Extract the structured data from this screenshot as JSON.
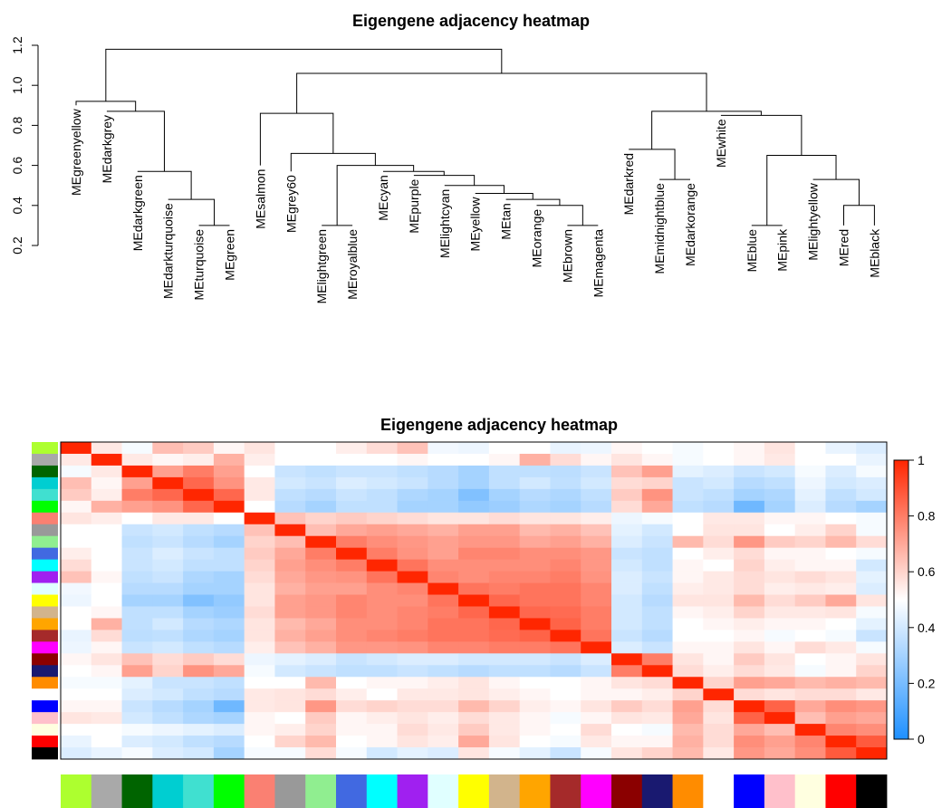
{
  "chart_data": [
    {
      "type": "dendrogram",
      "title": "Eigengene adjacency heatmap",
      "ylim": [
        0.2,
        1.2
      ],
      "yticks": [
        "0.2",
        "0.4",
        "0.6",
        "0.8",
        "1.0",
        "1.2"
      ],
      "ytick_values": [
        0.2,
        0.4,
        0.6,
        0.8,
        1.0,
        1.2
      ],
      "leaves": [
        "MEgreenyellow",
        "MEdarkgrey",
        "MEdarkgreen",
        "MEdarkturquoise",
        "MEturquoise",
        "MEgreen",
        "MEsalmon",
        "MEgrey60",
        "MElightgreen",
        "MEroyalblue",
        "MEcyan",
        "MEpurple",
        "MElightcyan",
        "MEyellow",
        "MEtan",
        "MEorange",
        "MEbrown",
        "MEmagenta",
        "MEdarkred",
        "MEmidnightblue",
        "MEdarkorange",
        "MEwhite",
        "MEblue",
        "MEpink",
        "MElightyellow",
        "MEred",
        "MEblack"
      ],
      "leaf_tops": [
        0.9,
        0.87,
        0.57,
        0.43,
        0.3,
        0.3,
        0.6,
        0.57,
        0.3,
        0.3,
        0.57,
        0.55,
        0.5,
        0.46,
        0.43,
        0.4,
        0.3,
        0.3,
        0.68,
        0.53,
        0.53,
        0.85,
        0.3,
        0.3,
        0.53,
        0.3,
        0.3
      ],
      "merges": [
        {
          "left": "L4",
          "right": "L5",
          "height": 0.3
        },
        {
          "left": "L3",
          "right": "m0",
          "height": 0.43
        },
        {
          "left": "L2",
          "right": "m1",
          "height": 0.57
        },
        {
          "left": "L1",
          "right": "m2",
          "height": 0.87
        },
        {
          "left": "L0",
          "right": "m3",
          "height": 0.92
        },
        {
          "left": "L8",
          "right": "L9",
          "height": 0.3
        },
        {
          "left": "L16",
          "right": "L17",
          "height": 0.3
        },
        {
          "left": "L15",
          "right": "m6",
          "height": 0.4
        },
        {
          "left": "L14",
          "right": "m7",
          "height": 0.43
        },
        {
          "left": "L13",
          "right": "m8",
          "height": 0.46
        },
        {
          "left": "L12",
          "right": "m9",
          "height": 0.5
        },
        {
          "left": "L11",
          "right": "m10",
          "height": 0.55
        },
        {
          "left": "L10",
          "right": "m11",
          "height": 0.57
        },
        {
          "left": "m5",
          "right": "m12",
          "height": 0.6
        },
        {
          "left": "L7",
          "right": "m13",
          "height": 0.66
        },
        {
          "left": "L6",
          "right": "m14",
          "height": 0.86
        },
        {
          "left": "L19",
          "right": "L20",
          "height": 0.53
        },
        {
          "left": "L18",
          "right": "m16",
          "height": 0.68
        },
        {
          "left": "L22",
          "right": "L23",
          "height": 0.3
        },
        {
          "left": "L25",
          "right": "L26",
          "height": 0.4
        },
        {
          "left": "L24",
          "right": "m19",
          "height": 0.53
        },
        {
          "left": "m18",
          "right": "m20",
          "height": 0.65
        },
        {
          "left": "L21",
          "right": "m21",
          "height": 0.85
        },
        {
          "left": "m17",
          "right": "m22",
          "height": 0.87
        },
        {
          "left": "m15",
          "right": "m23",
          "height": 1.06
        },
        {
          "left": "m4",
          "right": "m24",
          "height": 1.18
        }
      ]
    },
    {
      "type": "heatmap",
      "title": "Eigengene adjacency heatmap",
      "zlim": [
        0,
        1
      ],
      "colorbar_ticks": [
        "0",
        "0.2",
        "0.4",
        "0.6",
        "0.8",
        "1"
      ],
      "colorbar_tick_values": [
        0,
        0.2,
        0.4,
        0.6,
        0.8,
        1
      ],
      "colorscale": [
        "#1e90ff",
        "#ffffff",
        "#ff2600"
      ],
      "row_colors": [
        "#adff2f",
        "#a9a9a9",
        "#006400",
        "#00ced1",
        "#40e0d0",
        "#00ff00",
        "#fa8072",
        "#999999",
        "#90ee90",
        "#4169e1",
        "#00ffff",
        "#a020f0",
        "#e0ffff",
        "#ffff00",
        "#d2b48c",
        "#ffa500",
        "#a52a2a",
        "#ff00ff",
        "#8b0000",
        "#191970",
        "#ff8c00",
        "#ffffff",
        "#0000ff",
        "#ffc0cb",
        "#ffffe0",
        "#ff0000",
        "#000000"
      ],
      "col_colors": [
        "#adff2f",
        "#a9a9a9",
        "#006400",
        "#00ced1",
        "#40e0d0",
        "#00ff00",
        "#fa8072",
        "#999999",
        "#90ee90",
        "#4169e1",
        "#00ffff",
        "#a020f0",
        "#e0ffff",
        "#ffff00",
        "#d2b48c",
        "#ffa500",
        "#a52a2a",
        "#ff00ff",
        "#8b0000",
        "#191970",
        "#ff8c00",
        "#ffffff",
        "#0000ff",
        "#ffc0cb",
        "#ffffe0",
        "#ff0000",
        "#000000"
      ],
      "values": [
        [
          1,
          0.55,
          0.48,
          0.65,
          0.62,
          0.52,
          0.56,
          0.5,
          0.5,
          0.54,
          0.58,
          0.64,
          0.47,
          0.46,
          0.5,
          0.5,
          0.45,
          0.46,
          0.52,
          0.5,
          0.48,
          0.5,
          0.52,
          0.56,
          0.5,
          0.45,
          0.42
        ],
        [
          0.55,
          1,
          0.55,
          0.52,
          0.54,
          0.68,
          0.54,
          0.5,
          0.5,
          0.5,
          0.5,
          0.52,
          0.5,
          0.5,
          0.52,
          0.68,
          0.58,
          0.52,
          0.56,
          0.52,
          0.48,
          0.5,
          0.52,
          0.55,
          0.5,
          0.5,
          0.45
        ],
        [
          0.48,
          0.55,
          1,
          0.72,
          0.8,
          0.72,
          0.5,
          0.38,
          0.36,
          0.38,
          0.38,
          0.36,
          0.34,
          0.3,
          0.36,
          0.36,
          0.35,
          0.38,
          0.64,
          0.72,
          0.44,
          0.42,
          0.38,
          0.4,
          0.48,
          0.42,
          0.48
        ],
        [
          0.65,
          0.52,
          0.72,
          1,
          0.85,
          0.75,
          0.55,
          0.4,
          0.38,
          0.42,
          0.4,
          0.38,
          0.34,
          0.3,
          0.36,
          0.4,
          0.36,
          0.4,
          0.58,
          0.6,
          0.38,
          0.4,
          0.34,
          0.36,
          0.46,
          0.4,
          0.42
        ],
        [
          0.62,
          0.54,
          0.8,
          0.85,
          1,
          0.85,
          0.55,
          0.36,
          0.34,
          0.38,
          0.36,
          0.32,
          0.3,
          0.22,
          0.3,
          0.34,
          0.32,
          0.36,
          0.62,
          0.75,
          0.38,
          0.36,
          0.3,
          0.32,
          0.44,
          0.36,
          0.4
        ],
        [
          0.52,
          0.68,
          0.72,
          0.75,
          0.85,
          1,
          0.5,
          0.34,
          0.3,
          0.36,
          0.36,
          0.3,
          0.3,
          0.26,
          0.28,
          0.32,
          0.3,
          0.34,
          0.58,
          0.7,
          0.36,
          0.34,
          0.18,
          0.3,
          0.42,
          0.34,
          0.3
        ],
        [
          0.56,
          0.54,
          0.5,
          0.55,
          0.55,
          0.5,
          1,
          0.64,
          0.6,
          0.62,
          0.6,
          0.58,
          0.56,
          0.56,
          0.58,
          0.56,
          0.56,
          0.54,
          0.46,
          0.48,
          0.5,
          0.55,
          0.55,
          0.52,
          0.52,
          0.5,
          0.48
        ],
        [
          0.5,
          0.5,
          0.38,
          0.4,
          0.36,
          0.34,
          0.64,
          1,
          0.65,
          0.7,
          0.72,
          0.7,
          0.68,
          0.72,
          0.72,
          0.66,
          0.68,
          0.64,
          0.44,
          0.4,
          0.5,
          0.56,
          0.56,
          0.5,
          0.54,
          0.6,
          0.48
        ],
        [
          0.5,
          0.5,
          0.36,
          0.38,
          0.34,
          0.3,
          0.6,
          0.65,
          1,
          0.8,
          0.76,
          0.74,
          0.72,
          0.74,
          0.74,
          0.7,
          0.72,
          0.68,
          0.42,
          0.38,
          0.66,
          0.58,
          0.74,
          0.62,
          0.6,
          0.66,
          0.58
        ],
        [
          0.54,
          0.5,
          0.38,
          0.42,
          0.38,
          0.36,
          0.62,
          0.7,
          0.8,
          1,
          0.8,
          0.75,
          0.72,
          0.78,
          0.78,
          0.76,
          0.76,
          0.74,
          0.38,
          0.36,
          0.5,
          0.54,
          0.58,
          0.52,
          0.52,
          0.5,
          0.48
        ],
        [
          0.58,
          0.5,
          0.38,
          0.4,
          0.36,
          0.36,
          0.6,
          0.72,
          0.76,
          0.8,
          1,
          0.82,
          0.76,
          0.76,
          0.76,
          0.76,
          0.78,
          0.74,
          0.4,
          0.36,
          0.52,
          0.5,
          0.6,
          0.54,
          0.52,
          0.52,
          0.4
        ],
        [
          0.64,
          0.52,
          0.36,
          0.38,
          0.32,
          0.3,
          0.58,
          0.7,
          0.74,
          0.75,
          0.82,
          1,
          0.78,
          0.76,
          0.78,
          0.78,
          0.8,
          0.75,
          0.42,
          0.38,
          0.52,
          0.55,
          0.58,
          0.56,
          0.58,
          0.56,
          0.44
        ],
        [
          0.47,
          0.5,
          0.34,
          0.34,
          0.3,
          0.3,
          0.56,
          0.68,
          0.72,
          0.72,
          0.76,
          0.78,
          1,
          0.82,
          0.8,
          0.82,
          0.82,
          0.78,
          0.42,
          0.36,
          0.54,
          0.55,
          0.58,
          0.54,
          0.55,
          0.54,
          0.42
        ],
        [
          0.46,
          0.5,
          0.3,
          0.3,
          0.22,
          0.26,
          0.56,
          0.72,
          0.74,
          0.78,
          0.76,
          0.76,
          0.82,
          1,
          0.85,
          0.82,
          0.82,
          0.78,
          0.4,
          0.34,
          0.56,
          0.56,
          0.66,
          0.58,
          0.62,
          0.7,
          0.56
        ],
        [
          0.5,
          0.52,
          0.36,
          0.36,
          0.3,
          0.28,
          0.58,
          0.72,
          0.74,
          0.78,
          0.76,
          0.78,
          0.8,
          0.85,
          1,
          0.85,
          0.84,
          0.8,
          0.4,
          0.36,
          0.52,
          0.54,
          0.6,
          0.55,
          0.55,
          0.56,
          0.48
        ],
        [
          0.5,
          0.68,
          0.36,
          0.4,
          0.34,
          0.32,
          0.56,
          0.66,
          0.7,
          0.76,
          0.76,
          0.78,
          0.82,
          0.82,
          0.85,
          1,
          0.86,
          0.8,
          0.4,
          0.36,
          0.5,
          0.52,
          0.54,
          0.52,
          0.52,
          0.5,
          0.44
        ],
        [
          0.45,
          0.58,
          0.35,
          0.36,
          0.32,
          0.3,
          0.56,
          0.68,
          0.72,
          0.76,
          0.78,
          0.8,
          0.82,
          0.82,
          0.84,
          0.86,
          1,
          0.82,
          0.38,
          0.34,
          0.5,
          0.5,
          0.52,
          0.48,
          0.5,
          0.48,
          0.38
        ],
        [
          0.46,
          0.52,
          0.38,
          0.4,
          0.36,
          0.34,
          0.54,
          0.64,
          0.68,
          0.74,
          0.74,
          0.75,
          0.78,
          0.78,
          0.8,
          0.8,
          0.82,
          1,
          0.42,
          0.38,
          0.52,
          0.52,
          0.56,
          0.52,
          0.58,
          0.55,
          0.48
        ],
        [
          0.52,
          0.56,
          0.64,
          0.58,
          0.62,
          0.58,
          0.46,
          0.44,
          0.42,
          0.38,
          0.4,
          0.42,
          0.42,
          0.4,
          0.4,
          0.4,
          0.38,
          0.42,
          1,
          0.8,
          0.56,
          0.52,
          0.62,
          0.56,
          0.5,
          0.52,
          0.56
        ],
        [
          0.5,
          0.52,
          0.72,
          0.6,
          0.75,
          0.7,
          0.48,
          0.4,
          0.38,
          0.36,
          0.36,
          0.38,
          0.36,
          0.34,
          0.36,
          0.36,
          0.34,
          0.38,
          0.8,
          1,
          0.58,
          0.54,
          0.58,
          0.55,
          0.48,
          0.52,
          0.6
        ],
        [
          0.48,
          0.48,
          0.44,
          0.38,
          0.38,
          0.36,
          0.5,
          0.5,
          0.66,
          0.5,
          0.52,
          0.52,
          0.54,
          0.56,
          0.52,
          0.5,
          0.5,
          0.52,
          0.56,
          0.58,
          1,
          0.6,
          0.72,
          0.7,
          0.66,
          0.68,
          0.66
        ],
        [
          0.5,
          0.5,
          0.42,
          0.4,
          0.36,
          0.34,
          0.55,
          0.56,
          0.58,
          0.54,
          0.5,
          0.55,
          0.55,
          0.56,
          0.54,
          0.52,
          0.5,
          0.52,
          0.52,
          0.54,
          0.6,
          1,
          0.58,
          0.56,
          0.58,
          0.58,
          0.55
        ],
        [
          0.52,
          0.52,
          0.38,
          0.34,
          0.3,
          0.18,
          0.55,
          0.56,
          0.74,
          0.58,
          0.6,
          0.58,
          0.58,
          0.66,
          0.6,
          0.54,
          0.52,
          0.56,
          0.62,
          0.58,
          0.72,
          0.58,
          1,
          0.86,
          0.7,
          0.76,
          0.74
        ],
        [
          0.56,
          0.55,
          0.4,
          0.36,
          0.32,
          0.3,
          0.52,
          0.5,
          0.62,
          0.52,
          0.54,
          0.56,
          0.54,
          0.58,
          0.55,
          0.52,
          0.48,
          0.52,
          0.56,
          0.55,
          0.7,
          0.56,
          0.86,
          1,
          0.65,
          0.72,
          0.7
        ],
        [
          0.5,
          0.5,
          0.48,
          0.46,
          0.44,
          0.42,
          0.52,
          0.54,
          0.6,
          0.52,
          0.52,
          0.58,
          0.55,
          0.62,
          0.55,
          0.52,
          0.5,
          0.58,
          0.5,
          0.48,
          0.66,
          0.58,
          0.7,
          0.65,
          1,
          0.78,
          0.76
        ],
        [
          0.45,
          0.5,
          0.42,
          0.4,
          0.36,
          0.34,
          0.5,
          0.6,
          0.66,
          0.5,
          0.52,
          0.56,
          0.54,
          0.7,
          0.56,
          0.5,
          0.48,
          0.55,
          0.52,
          0.52,
          0.68,
          0.58,
          0.76,
          0.72,
          0.78,
          1,
          0.88
        ],
        [
          0.42,
          0.45,
          0.48,
          0.42,
          0.4,
          0.3,
          0.48,
          0.48,
          0.58,
          0.48,
          0.4,
          0.44,
          0.42,
          0.56,
          0.48,
          0.44,
          0.38,
          0.48,
          0.56,
          0.6,
          0.66,
          0.55,
          0.74,
          0.7,
          0.76,
          0.88,
          1
        ]
      ]
    }
  ]
}
